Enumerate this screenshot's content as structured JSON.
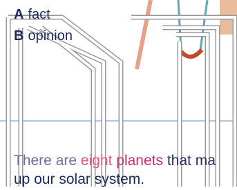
{
  "options": [
    {
      "letter": "A",
      "text": "fact"
    },
    {
      "letter": "B",
      "text": "opinion"
    }
  ],
  "sentence": {
    "line1": [
      "There are",
      "eight",
      "planets",
      "that ma"
    ],
    "line2": "up our solar system."
  }
}
